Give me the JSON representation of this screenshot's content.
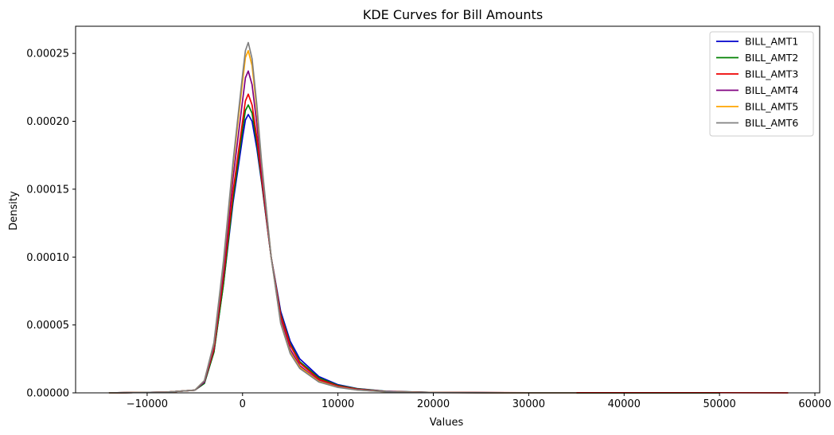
{
  "chart_data": {
    "type": "line",
    "title": "KDE Curves for Bill Amounts",
    "xlabel": "Values",
    "ylabel": "Density",
    "xlim": [
      -17500,
      60500
    ],
    "ylim": [
      0,
      0.00027
    ],
    "xticks": [
      -10000,
      0,
      10000,
      20000,
      30000,
      40000,
      50000,
      60000
    ],
    "xtick_labels": [
      "−10000",
      "0",
      "10000",
      "20000",
      "30000",
      "40000",
      "50000",
      "60000"
    ],
    "yticks": [
      0,
      5e-05,
      0.0001,
      0.00015,
      0.0002,
      0.00025
    ],
    "ytick_labels": [
      "0.00000",
      "0.00005",
      "0.00010",
      "0.00015",
      "0.00020",
      "0.00025"
    ],
    "grid": false,
    "legend_position": "top-right",
    "series": [
      {
        "name": "BILL_AMT1",
        "color": "#0000cc",
        "x": [
          -14000,
          -8000,
          -5000,
          -4000,
          -3000,
          -2000,
          -1000,
          0,
          300,
          600,
          1000,
          1500,
          2000,
          3000,
          4000,
          5000,
          6000,
          8000,
          10000,
          12000,
          15000,
          20000,
          30000,
          40000,
          50000
        ],
        "y": [
          0,
          5e-07,
          2e-06,
          7e-06,
          3e-05,
          8e-05,
          0.00014,
          0.000188,
          0.000201,
          0.000205,
          0.0002,
          0.00018,
          0.000155,
          0.0001,
          6e-05,
          3.8e-05,
          2.5e-05,
          1.2e-05,
          6e-06,
          3.2e-06,
          1.2e-06,
          3e-07,
          0,
          0,
          0
        ]
      },
      {
        "name": "BILL_AMT2",
        "color": "#008000",
        "x": [
          -14000,
          -8000,
          -5000,
          -4000,
          -3000,
          -2000,
          -1000,
          0,
          300,
          600,
          1000,
          1500,
          2000,
          3000,
          4000,
          5000,
          6000,
          8000,
          10000,
          12000,
          15000,
          20000,
          30000,
          40000,
          50000
        ],
        "y": [
          0,
          5e-07,
          2e-06,
          7e-06,
          3e-05,
          8e-05,
          0.000143,
          0.000194,
          0.000208,
          0.000212,
          0.000206,
          0.000184,
          0.000156,
          0.0001,
          5.8e-05,
          3.6e-05,
          2.3e-05,
          1.1e-05,
          5.5e-06,
          3e-06,
          1.1e-06,
          3e-07,
          0,
          0,
          0
        ]
      },
      {
        "name": "BILL_AMT3",
        "color": "#ee0000",
        "x": [
          -14000,
          -8000,
          -5000,
          -4000,
          -3000,
          -2000,
          -1000,
          0,
          300,
          600,
          1000,
          1500,
          2000,
          3000,
          4000,
          5000,
          6000,
          8000,
          10000,
          12000,
          15000,
          20000,
          30000,
          40000,
          50000,
          57200
        ],
        "y": [
          0,
          5e-07,
          2e-06,
          8e-06,
          3.2e-05,
          8.5e-05,
          0.000148,
          0.0002,
          0.000215,
          0.00022,
          0.000212,
          0.000188,
          0.000158,
          0.0001,
          5.7e-05,
          3.5e-05,
          2.2e-05,
          1e-05,
          5e-06,
          2.7e-06,
          1e-06,
          3e-07,
          1e-07,
          1e-07,
          1e-07,
          0
        ]
      },
      {
        "name": "BILL_AMT4",
        "color": "#800080",
        "x": [
          -14000,
          -8000,
          -5000,
          -4000,
          -3000,
          -2000,
          -1000,
          0,
          300,
          600,
          1000,
          1500,
          2000,
          3000,
          4000,
          5000,
          6000,
          8000,
          10000,
          12000,
          15000,
          20000,
          30000,
          35000
        ],
        "y": [
          0,
          5e-07,
          2e-06,
          8e-06,
          3.4e-05,
          9e-05,
          0.000158,
          0.000215,
          0.000232,
          0.000237,
          0.000227,
          0.000198,
          0.000163,
          0.0001,
          5.4e-05,
          3.2e-05,
          2e-05,
          9e-06,
          4.5e-06,
          2.4e-06,
          9e-07,
          2e-07,
          0,
          0
        ]
      },
      {
        "name": "BILL_AMT5",
        "color": "#ffa500",
        "x": [
          -14000,
          -8000,
          -5000,
          -4000,
          -3000,
          -2000,
          -1000,
          0,
          300,
          600,
          1000,
          1500,
          2000,
          3000,
          4000,
          5000,
          6000,
          8000,
          10000,
          12000,
          15000,
          20000,
          30000,
          35000
        ],
        "y": [
          0,
          5e-07,
          2e-06,
          9e-06,
          3.6e-05,
          9.5e-05,
          0.000167,
          0.000229,
          0.000247,
          0.000252,
          0.000241,
          0.000208,
          0.000168,
          0.0001,
          5.2e-05,
          3e-05,
          1.9e-05,
          8.5e-06,
          4.2e-06,
          2.2e-06,
          8e-07,
          2e-07,
          0,
          0
        ]
      },
      {
        "name": "BILL_AMT6",
        "color": "#808080",
        "x": [
          -14000,
          -8000,
          -5000,
          -4000,
          -3000,
          -2000,
          -1000,
          0,
          300,
          600,
          1000,
          1500,
          2000,
          3000,
          4000,
          5000,
          6000,
          8000,
          10000,
          12000,
          15000,
          20000,
          30000,
          35000
        ],
        "y": [
          0,
          5e-07,
          2e-06,
          9e-06,
          3.7e-05,
          9.7e-05,
          0.00017,
          0.000234,
          0.000252,
          0.000258,
          0.000246,
          0.000212,
          0.00017,
          0.0001,
          5.1e-05,
          2.9e-05,
          1.8e-05,
          8e-06,
          4e-06,
          2.1e-06,
          8e-07,
          2e-07,
          0,
          0
        ]
      }
    ]
  }
}
